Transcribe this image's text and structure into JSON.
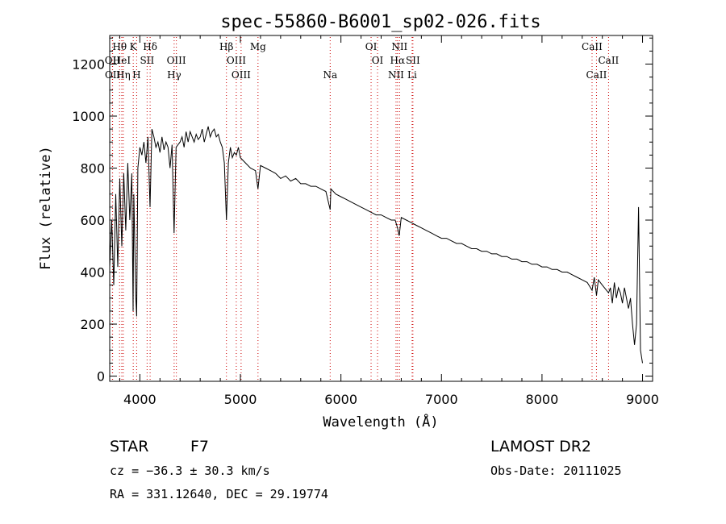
{
  "chart_data": {
    "type": "line",
    "title": "spec-55860-B6001_sp02-026.fits",
    "xlabel": "Wavelength (Å)",
    "ylabel": "Flux (relative)",
    "xlim": [
      3700,
      9100
    ],
    "ylim": [
      -20,
      1310
    ],
    "xticks": [
      4000,
      5000,
      6000,
      7000,
      8000,
      9000
    ],
    "yticks": [
      0,
      200,
      400,
      600,
      800,
      1000,
      1200
    ],
    "grid": false,
    "line_color": "#000000",
    "marker_color": "#cc0000",
    "series": [
      {
        "x": [
          3700,
          3720,
          3740,
          3760,
          3780,
          3800,
          3820,
          3840,
          3860,
          3880,
          3900,
          3920,
          3933,
          3940,
          3960,
          3968,
          3980,
          4000,
          4020,
          4040,
          4060,
          4080,
          4101,
          4120,
          4140,
          4160,
          4180,
          4200,
          4220,
          4240,
          4260,
          4280,
          4300,
          4320,
          4340,
          4360,
          4380,
          4400,
          4420,
          4440,
          4460,
          4480,
          4500,
          4520,
          4540,
          4560,
          4580,
          4600,
          4620,
          4640,
          4660,
          4680,
          4700,
          4720,
          4740,
          4760,
          4780,
          4800,
          4820,
          4840,
          4861,
          4880,
          4900,
          4920,
          4940,
          4960,
          4980,
          5000,
          5050,
          5100,
          5150,
          5175,
          5200,
          5250,
          5300,
          5350,
          5400,
          5450,
          5500,
          5550,
          5600,
          5650,
          5700,
          5750,
          5800,
          5850,
          5893,
          5900,
          5950,
          6000,
          6050,
          6100,
          6150,
          6200,
          6250,
          6300,
          6350,
          6400,
          6450,
          6500,
          6540,
          6563,
          6580,
          6600,
          6650,
          6700,
          6750,
          6800,
          6850,
          6900,
          6950,
          7000,
          7050,
          7100,
          7150,
          7200,
          7250,
          7300,
          7350,
          7400,
          7450,
          7500,
          7550,
          7600,
          7650,
          7700,
          7750,
          7800,
          7850,
          7900,
          7950,
          8000,
          8050,
          8100,
          8150,
          8200,
          8250,
          8300,
          8350,
          8400,
          8450,
          8498,
          8520,
          8542,
          8560,
          8600,
          8662,
          8680,
          8700,
          8720,
          8740,
          8760,
          8780,
          8800,
          8820,
          8840,
          8860,
          8880,
          8900,
          8920,
          8940,
          8960,
          8980,
          9000
        ],
        "values": [
          420,
          600,
          350,
          700,
          420,
          760,
          500,
          780,
          560,
          820,
          600,
          780,
          250,
          700,
          300,
          230,
          800,
          880,
          850,
          900,
          820,
          920,
          650,
          950,
          920,
          880,
          900,
          860,
          920,
          870,
          900,
          880,
          800,
          890,
          550,
          880,
          890,
          900,
          920,
          880,
          940,
          900,
          940,
          920,
          900,
          930,
          910,
          920,
          950,
          900,
          930,
          960,
          920,
          940,
          950,
          920,
          930,
          900,
          880,
          820,
          600,
          820,
          880,
          840,
          860,
          850,
          880,
          840,
          820,
          800,
          790,
          720,
          810,
          800,
          790,
          780,
          760,
          770,
          750,
          760,
          740,
          740,
          730,
          730,
          720,
          710,
          640,
          720,
          700,
          690,
          680,
          670,
          660,
          650,
          640,
          630,
          620,
          620,
          610,
          600,
          600,
          570,
          540,
          610,
          600,
          590,
          580,
          570,
          560,
          550,
          540,
          530,
          530,
          520,
          510,
          510,
          500,
          490,
          490,
          480,
          480,
          470,
          470,
          460,
          460,
          450,
          450,
          440,
          440,
          430,
          430,
          420,
          420,
          410,
          410,
          400,
          400,
          390,
          380,
          370,
          360,
          330,
          380,
          310,
          370,
          350,
          320,
          340,
          280,
          360,
          300,
          340,
          320,
          280,
          340,
          300,
          260,
          300,
          200,
          120,
          200,
          650,
          100,
          50
        ]
      }
    ],
    "line_labels": [
      {
        "name": "Hθ",
        "x": 3798,
        "row": 1
      },
      {
        "name": "K",
        "x": 3934,
        "row": 1
      },
      {
        "name": "Hδ",
        "x": 4102,
        "row": 1
      },
      {
        "name": "OII",
        "x": 3727,
        "row": 2
      },
      {
        "name": "HeI",
        "x": 3820,
        "row": 2
      },
      {
        "name": "SII",
        "x": 4072,
        "row": 2
      },
      {
        "name": "OIII",
        "x": 4363,
        "row": 2
      },
      {
        "name": "OII",
        "x": 3729,
        "row": 3
      },
      {
        "name": "Hη",
        "x": 3835,
        "row": 3
      },
      {
        "name": "H",
        "x": 3968,
        "row": 3
      },
      {
        "name": "Hγ",
        "x": 4341,
        "row": 3
      },
      {
        "name": "Hβ",
        "x": 4861,
        "row": 1
      },
      {
        "name": "Mg",
        "x": 5175,
        "row": 1
      },
      {
        "name": "OIII",
        "x": 4959,
        "row": 2
      },
      {
        "name": "OIII",
        "x": 5007,
        "row": 3
      },
      {
        "name": "Na",
        "x": 5893,
        "row": 3
      },
      {
        "name": "OI",
        "x": 6300,
        "row": 1
      },
      {
        "name": "OI",
        "x": 6364,
        "row": 2
      },
      {
        "name": "NII",
        "x": 6583,
        "row": 1
      },
      {
        "name": "Hα",
        "x": 6563,
        "row": 2
      },
      {
        "name": "SII",
        "x": 6716,
        "row": 2
      },
      {
        "name": "NII",
        "x": 6548,
        "row": 3
      },
      {
        "name": "Li",
        "x": 6708,
        "row": 3
      },
      {
        "name": "CaII",
        "x": 8498,
        "row": 1
      },
      {
        "name": "CaII",
        "x": 8662,
        "row": 2
      },
      {
        "name": "CaII",
        "x": 8542,
        "row": 3
      }
    ]
  },
  "info": {
    "object_type": "STAR",
    "subclass": "F7",
    "survey": "LAMOST DR2",
    "cz": "cz = −36.3 ± 30.3 km/s",
    "obs_date": "Obs-Date: 20111025",
    "coords": "RA = 331.12640, DEC =  29.19774"
  }
}
